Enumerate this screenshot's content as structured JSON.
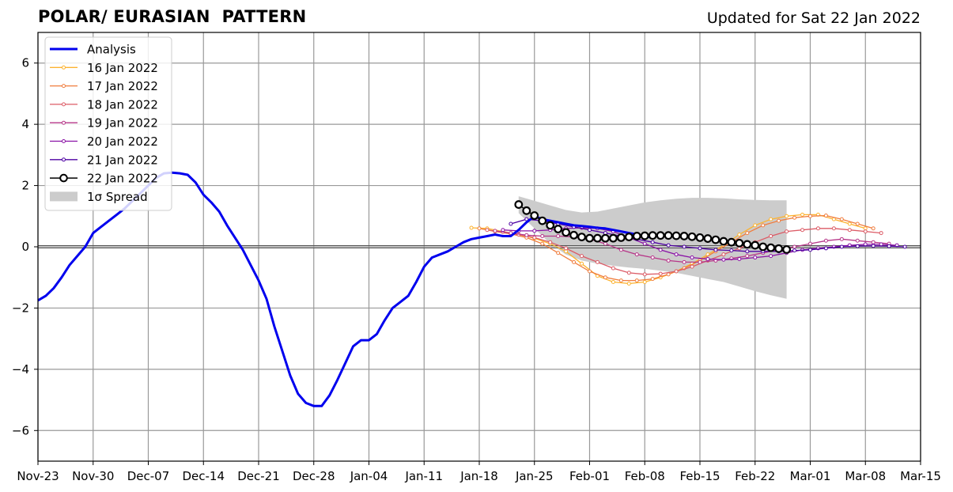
{
  "header": {
    "title": "POLAR/ EURASIAN  PATTERN",
    "updated": "Updated for Sat 22 Jan 2022"
  },
  "chart_data": {
    "type": "line",
    "title": "POLAR/ EURASIAN  PATTERN",
    "xlabel": "",
    "ylabel": "",
    "x_ticks": [
      "Nov-23",
      "Nov-30",
      "Dec-07",
      "Dec-14",
      "Dec-21",
      "Dec-28",
      "Jan-04",
      "Jan-11",
      "Jan-18",
      "Jan-25",
      "Feb-01",
      "Feb-08",
      "Feb-15",
      "Feb-22",
      "Mar-01",
      "Mar-08",
      "Mar-15"
    ],
    "xlim_days": [
      0,
      112
    ],
    "y_ticks": [
      6,
      4,
      2,
      0,
      -2,
      -4,
      -6
    ],
    "y_tick_labels": [
      "6",
      "4",
      "2",
      "0",
      "−2",
      "−4",
      "−6"
    ],
    "ylim": [
      -7,
      7
    ],
    "grid": true,
    "legend_position": "upper-left",
    "legend": [
      {
        "label": "Analysis",
        "color": "#0000ee",
        "style": "line"
      },
      {
        "label": "16 Jan 2022",
        "color": "#fcb330",
        "style": "dots"
      },
      {
        "label": "17 Jan 2022",
        "color": "#f07d3e",
        "style": "dots"
      },
      {
        "label": "18 Jan 2022",
        "color": "#dc5b66",
        "style": "dots"
      },
      {
        "label": "19 Jan 2022",
        "color": "#b73789",
        "style": "dots"
      },
      {
        "label": "20 Jan 2022",
        "color": "#8a12a6",
        "style": "dots"
      },
      {
        "label": "21 Jan 2022",
        "color": "#4e02a3",
        "style": "dots"
      },
      {
        "label": "22 Jan 2022",
        "color": "#000000",
        "style": "circles"
      },
      {
        "label": "1σ Spread",
        "color": "#cccccc",
        "style": "patch"
      }
    ],
    "analysis": {
      "name": "Analysis",
      "x": [
        0,
        1,
        2,
        3,
        4,
        5,
        6,
        7,
        8,
        9,
        10,
        11,
        12,
        13,
        14,
        15,
        16,
        17,
        18,
        19,
        20,
        21,
        22,
        23,
        24,
        25,
        26,
        27,
        28,
        29,
        30,
        31,
        32,
        33,
        34,
        35,
        36,
        37,
        38,
        39,
        40,
        41,
        42,
        43,
        44,
        45,
        46,
        47,
        48,
        49,
        50,
        51,
        52,
        53,
        54,
        55,
        56,
        57,
        58,
        59,
        60,
        61,
        62,
        63,
        64,
        65,
        66,
        67,
        68,
        69,
        70,
        71,
        72,
        73,
        74,
        75,
        76,
        77,
        78
      ],
      "y": [
        -1.75,
        -1.6,
        -1.35,
        -1.0,
        -0.6,
        -0.3,
        0.0,
        0.45,
        0.65,
        0.85,
        1.05,
        1.25,
        1.5,
        1.75,
        2.0,
        2.25,
        2.4,
        2.42,
        2.4,
        2.35,
        2.1,
        1.7,
        1.45,
        1.15,
        0.7,
        0.3,
        -0.1,
        -0.6,
        -1.1,
        -1.7,
        -2.6,
        -3.4,
        -4.2,
        -4.8,
        -5.1,
        -5.2,
        -5.2,
        -4.85,
        -4.35,
        -3.8,
        -3.25,
        -3.05,
        -3.05,
        -2.85,
        -2.4,
        -2.0,
        -1.8,
        -1.6,
        -1.15,
        -0.65,
        -0.35,
        -0.25,
        -0.15,
        0.0,
        0.15,
        0.25,
        0.3,
        0.35,
        0.4,
        0.35,
        0.35,
        0.55,
        0.8,
        1.0,
        0.9,
        0.85,
        0.8,
        0.75,
        0.7,
        0.68,
        0.65,
        0.62,
        0.6,
        0.55,
        0.5,
        0.45,
        0.4,
        0.35,
        0.3
      ]
    },
    "forecasts": [
      {
        "name": "16 Jan 2022",
        "color": "#fcb330",
        "x": [
          55,
          57,
          59,
          61,
          63,
          65,
          67,
          69,
          71,
          73,
          75,
          77,
          79,
          81,
          83,
          85,
          87,
          89,
          91,
          93,
          95,
          97,
          99,
          101,
          103,
          105
        ],
        "y": [
          0.62,
          0.6,
          0.5,
          0.4,
          0.28,
          0.1,
          -0.15,
          -0.55,
          -0.95,
          -1.15,
          -1.2,
          -1.15,
          -1.0,
          -0.8,
          -0.55,
          -0.25,
          0.05,
          0.4,
          0.7,
          0.9,
          1.0,
          1.05,
          1.05,
          0.9,
          0.75,
          0.6
        ]
      },
      {
        "name": "17 Jan 2022",
        "color": "#f07d3e",
        "x": [
          56,
          58,
          60,
          62,
          64,
          66,
          68,
          70,
          72,
          74,
          76,
          78,
          80,
          82,
          84,
          86,
          88,
          90,
          92,
          94,
          96,
          98,
          100,
          102,
          104,
          106
        ],
        "y": [
          0.6,
          0.5,
          0.42,
          0.3,
          0.1,
          -0.2,
          -0.5,
          -0.8,
          -1.0,
          -1.1,
          -1.1,
          -1.05,
          -0.9,
          -0.7,
          -0.45,
          -0.15,
          0.15,
          0.45,
          0.7,
          0.85,
          0.95,
          1.0,
          1.02,
          0.9,
          0.75,
          0.6
        ]
      },
      {
        "name": "18 Jan 2022",
        "color": "#dc5b66",
        "x": [
          57,
          59,
          61,
          63,
          65,
          67,
          69,
          71,
          73,
          75,
          77,
          79,
          81,
          83,
          85,
          87,
          89,
          91,
          93,
          95,
          97,
          99,
          101,
          103,
          105,
          107
        ],
        "y": [
          0.55,
          0.48,
          0.4,
          0.3,
          0.15,
          -0.05,
          -0.3,
          -0.5,
          -0.7,
          -0.85,
          -0.9,
          -0.88,
          -0.8,
          -0.65,
          -0.45,
          -0.25,
          -0.05,
          0.15,
          0.35,
          0.5,
          0.55,
          0.6,
          0.6,
          0.55,
          0.5,
          0.45
        ]
      },
      {
        "name": "19 Jan 2022",
        "color": "#b73789",
        "x": [
          58,
          60,
          62,
          64,
          66,
          68,
          70,
          72,
          74,
          76,
          78,
          80,
          82,
          84,
          86,
          88,
          90,
          92,
          94,
          96,
          98,
          100,
          102,
          104,
          106,
          108
        ],
        "y": [
          0.52,
          0.45,
          0.38,
          0.35,
          0.35,
          0.32,
          0.25,
          0.1,
          -0.1,
          -0.25,
          -0.35,
          -0.45,
          -0.5,
          -0.5,
          -0.45,
          -0.38,
          -0.3,
          -0.2,
          -0.1,
          0.0,
          0.1,
          0.2,
          0.25,
          0.2,
          0.15,
          0.1
        ]
      },
      {
        "name": "20 Jan 2022",
        "color": "#8a12a6",
        "x": [
          59,
          61,
          63,
          65,
          67,
          69,
          71,
          73,
          75,
          77,
          79,
          81,
          83,
          85,
          87,
          89,
          91,
          93,
          95,
          97,
          99,
          101,
          103,
          105,
          107,
          109
        ],
        "y": [
          0.55,
          0.52,
          0.52,
          0.55,
          0.6,
          0.62,
          0.6,
          0.5,
          0.3,
          0.1,
          -0.1,
          -0.25,
          -0.35,
          -0.4,
          -0.42,
          -0.4,
          -0.35,
          -0.3,
          -0.2,
          -0.1,
          -0.05,
          0.0,
          0.05,
          0.08,
          0.08,
          0.05
        ]
      },
      {
        "name": "21 Jan 2022",
        "color": "#4e02a3",
        "x": [
          60,
          62,
          64,
          66,
          68,
          70,
          72,
          74,
          76,
          78,
          80,
          82,
          84,
          86,
          88,
          90,
          92,
          94,
          96,
          98,
          100,
          102,
          104,
          106,
          108,
          110
        ],
        "y": [
          0.75,
          0.9,
          0.85,
          0.75,
          0.65,
          0.55,
          0.45,
          0.35,
          0.25,
          0.15,
          0.05,
          0.0,
          -0.05,
          -0.1,
          -0.12,
          -0.15,
          -0.15,
          -0.15,
          -0.12,
          -0.1,
          -0.05,
          0.0,
          0.02,
          0.03,
          0.02,
          0.0
        ]
      },
      {
        "name": "22 Jan 2022",
        "color": "#000000",
        "x": [
          61,
          62,
          63,
          64,
          65,
          66,
          67,
          68,
          69,
          70,
          71,
          72,
          73,
          74,
          75,
          76,
          77,
          78,
          79,
          80,
          81,
          82,
          83,
          84,
          85,
          86,
          87,
          88,
          89,
          90,
          91,
          92,
          93,
          94,
          95
        ],
        "y": [
          1.38,
          1.18,
          1.02,
          0.85,
          0.7,
          0.58,
          0.47,
          0.38,
          0.32,
          0.28,
          0.28,
          0.28,
          0.28,
          0.3,
          0.32,
          0.35,
          0.36,
          0.37,
          0.37,
          0.37,
          0.36,
          0.35,
          0.33,
          0.3,
          0.27,
          0.23,
          0.18,
          0.15,
          0.12,
          0.08,
          0.05,
          0.0,
          -0.03,
          -0.06,
          -0.09
        ]
      }
    ],
    "spread": {
      "name": "1σ Spread",
      "x": [
        61,
        63,
        65,
        67,
        69,
        71,
        73,
        75,
        77,
        79,
        81,
        83,
        85,
        87,
        89,
        91,
        93,
        95
      ],
      "upper": [
        1.65,
        1.5,
        1.35,
        1.2,
        1.12,
        1.15,
        1.25,
        1.35,
        1.45,
        1.52,
        1.57,
        1.6,
        1.6,
        1.58,
        1.55,
        1.53,
        1.52,
        1.52
      ],
      "lower": [
        1.1,
        0.6,
        0.1,
        -0.25,
        -0.45,
        -0.55,
        -0.62,
        -0.68,
        -0.72,
        -0.78,
        -0.85,
        -0.95,
        -1.05,
        -1.15,
        -1.3,
        -1.45,
        -1.58,
        -1.7
      ]
    }
  }
}
